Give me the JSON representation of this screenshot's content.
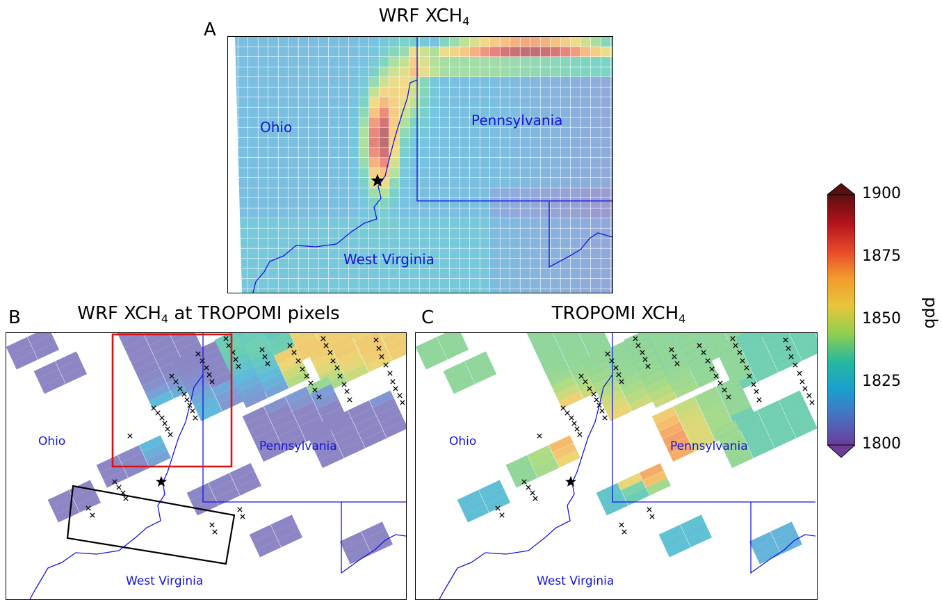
{
  "panels": {
    "a": {
      "letter": "A",
      "title_main": "WRF XCH",
      "title_sub": "4",
      "title_rest": "",
      "labels": {
        "ohio": "Ohio",
        "penn": "Pennsylvania",
        "wv": "West Virginia"
      }
    },
    "b": {
      "letter": "B",
      "title_main": "WRF XCH",
      "title_sub": "4",
      "title_rest": " at TROPOMI pixels",
      "labels": {
        "ohio": "Ohio",
        "penn": "Pennsylvania",
        "wv": "West Virginia"
      }
    },
    "c": {
      "letter": "C",
      "title_main": "TROPOMI XCH",
      "title_sub": "4",
      "title_rest": "",
      "labels": {
        "ohio": "Ohio",
        "penn": "Pennsylvania",
        "wv": "West Virginia"
      }
    }
  },
  "colorbar": {
    "label": "ppb",
    "ticks": [
      "1900",
      "1875",
      "1850",
      "1825",
      "1800"
    ],
    "min": 1800,
    "max": 1900,
    "colors": [
      "#6a3d9a",
      "#4a6fc2",
      "#1a9fcf",
      "#27b89c",
      "#8fcf4f",
      "#e8c53b",
      "#f39a2e",
      "#e8462a",
      "#b1121b",
      "#5a0f0f"
    ]
  },
  "colors": {
    "state_border": "#1414e0",
    "box_red": "#e01010",
    "box_black": "#000000"
  },
  "legend_marks": {
    "source_icon": "star-icon",
    "sounding_icon": "cross-icon"
  }
}
